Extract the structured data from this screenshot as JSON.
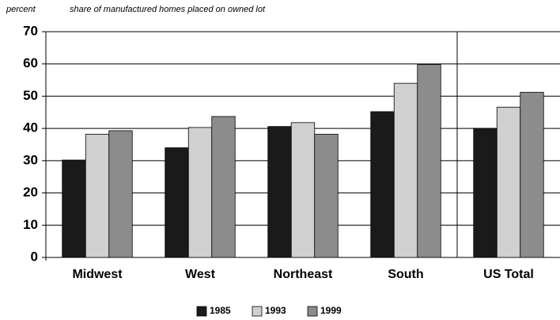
{
  "chart_data": {
    "type": "bar",
    "title": "share of manufactured homes placed on owned lot",
    "y_label": "percent",
    "categories": [
      "Midwest",
      "West",
      "Northeast",
      "South",
      "US Total"
    ],
    "series": [
      {
        "name": "1985",
        "color": "#1a1a1a",
        "values": [
          30.2,
          34,
          40.6,
          45.2,
          40
        ]
      },
      {
        "name": "1993",
        "color": "#d0d0d0",
        "values": [
          38.2,
          40.3,
          41.8,
          54,
          46.6
        ]
      },
      {
        "name": "1999",
        "color": "#8c8c8c",
        "values": [
          39.3,
          43.7,
          38.2,
          59.8,
          51.2
        ]
      }
    ],
    "ylim": [
      0,
      70
    ],
    "yticks": [
      0,
      10,
      20,
      30,
      40,
      50,
      60,
      70
    ],
    "grid": true,
    "legend": "bottom"
  }
}
